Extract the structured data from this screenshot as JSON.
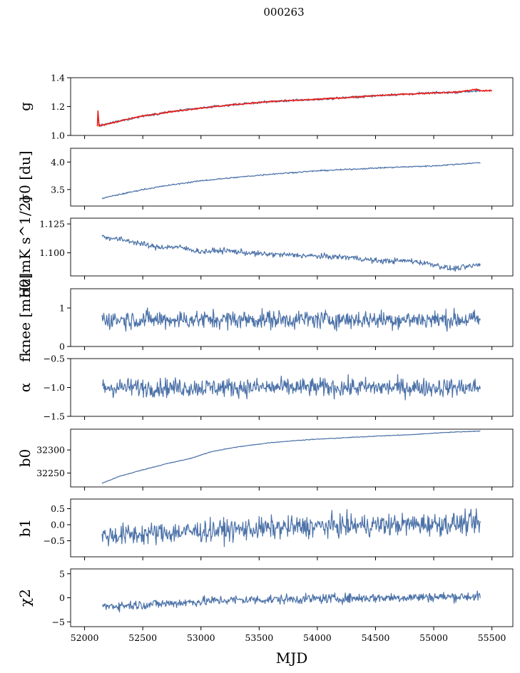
{
  "figure_title": "000263",
  "xlabel": "MJD",
  "x_ticks": [
    52000,
    52500,
    53000,
    53500,
    54000,
    54500,
    55000,
    55500
  ],
  "xlim": [
    51880,
    55680
  ],
  "colors": {
    "series": "#4c72a8",
    "fit": "#e8201a"
  },
  "chart_data": [
    {
      "type": "line",
      "ylabel": "g",
      "ylim": [
        1.0,
        1.4
      ],
      "y_ticks": [
        1.0,
        1.2,
        1.4
      ],
      "y_tick_labels": [
        "1.0",
        "1.2",
        "1.4"
      ],
      "noise": 0.004,
      "series": [
        {
          "color": "#4c72a8",
          "x": [
            52120,
            52140,
            52300,
            52500,
            52700,
            53000,
            53300,
            53600,
            54000,
            54300,
            54600,
            55000,
            55200,
            55400
          ],
          "y": [
            1.07,
            1.07,
            1.1,
            1.135,
            1.16,
            1.19,
            1.215,
            1.235,
            1.25,
            1.265,
            1.28,
            1.295,
            1.3,
            1.31
          ]
        },
        {
          "color": "#e8201a",
          "x": [
            52110,
            52112,
            52125,
            52128,
            52150,
            52300,
            52500,
            52700,
            53000,
            53300,
            53600,
            54000,
            54300,
            54600,
            55000,
            55200,
            55370,
            55390,
            55500
          ],
          "y": [
            1.06,
            1.2,
            1.06,
            1.07,
            1.07,
            1.1,
            1.135,
            1.16,
            1.19,
            1.215,
            1.235,
            1.25,
            1.265,
            1.28,
            1.295,
            1.3,
            1.32,
            1.31,
            1.31
          ]
        }
      ]
    },
    {
      "type": "line",
      "ylabel": "σ0 [du]",
      "ylim": [
        3.2,
        4.25
      ],
      "y_ticks": [
        3.5,
        4.0
      ],
      "y_tick_labels": [
        "3.5",
        "4.0"
      ],
      "noise": 0.006,
      "series": [
        {
          "color": "#4c72a8",
          "x": [
            52150,
            52300,
            52500,
            52700,
            53000,
            53300,
            53600,
            54000,
            54300,
            54600,
            55000,
            55200,
            55400
          ],
          "y": [
            3.34,
            3.41,
            3.5,
            3.57,
            3.66,
            3.72,
            3.78,
            3.84,
            3.87,
            3.9,
            3.93,
            3.96,
            3.99
          ]
        }
      ]
    },
    {
      "type": "line",
      "ylabel": "σ0[mK s^1/2]",
      "ylim": [
        1.08,
        1.13
      ],
      "y_ticks": [
        1.1,
        1.125
      ],
      "y_tick_labels": [
        "1.100",
        "1.125"
      ],
      "noise": 0.0012,
      "series": [
        {
          "color": "#4c72a8",
          "x": [
            52150,
            52400,
            52600,
            52800,
            53000,
            53200,
            53500,
            53800,
            54000,
            54300,
            54500,
            54800,
            55000,
            55150,
            55300,
            55400
          ],
          "y": [
            1.114,
            1.11,
            1.105,
            1.105,
            1.101,
            1.102,
            1.099,
            1.098,
            1.097,
            1.096,
            1.093,
            1.093,
            1.09,
            1.086,
            1.088,
            1.09
          ]
        }
      ]
    },
    {
      "type": "line",
      "ylabel": "fknee [mHz]",
      "ylim": [
        0,
        1.5
      ],
      "y_ticks": [
        0,
        1
      ],
      "y_tick_labels": [
        "0",
        "1"
      ],
      "noise": 0.12,
      "series": [
        {
          "color": "#4c72a8",
          "x": [
            52150,
            55400
          ],
          "y": [
            0.7,
            0.7
          ]
        }
      ]
    },
    {
      "type": "line",
      "ylabel": "α",
      "ylim": [
        -1.5,
        -0.5
      ],
      "y_ticks": [
        -1.5,
        -1.0,
        -0.5
      ],
      "y_tick_labels": [
        "−1.5",
        "−1.0",
        "−0.5"
      ],
      "noise": 0.08,
      "series": [
        {
          "color": "#4c72a8",
          "x": [
            52150,
            55400
          ],
          "y": [
            -1.0,
            -1.0
          ]
        }
      ]
    },
    {
      "type": "line",
      "ylabel": "b0",
      "ylim": [
        32220,
        32345
      ],
      "y_ticks": [
        32250,
        32300
      ],
      "y_tick_labels": [
        "32250",
        "32300"
      ],
      "noise": 0.4,
      "series": [
        {
          "color": "#4c72a8",
          "x": [
            52150,
            52300,
            52500,
            52700,
            52900,
            53100,
            53300,
            53600,
            53900,
            54200,
            54500,
            54800,
            55100,
            55400
          ],
          "y": [
            32228,
            32243,
            32257,
            32270,
            32281,
            32297,
            32306,
            32316,
            32322,
            32326,
            32330,
            32333,
            32338,
            32341
          ]
        }
      ]
    },
    {
      "type": "line",
      "ylabel": "b1",
      "ylim": [
        -1.0,
        0.8
      ],
      "y_ticks": [
        -0.5,
        0.0,
        0.5
      ],
      "y_tick_labels": [
        "−0.5",
        "0.0",
        "0.5"
      ],
      "noise": 0.17,
      "series": [
        {
          "color": "#4c72a8",
          "x": [
            52150,
            53000,
            54000,
            55400
          ],
          "y": [
            -0.35,
            -0.2,
            -0.05,
            0.05
          ]
        }
      ]
    },
    {
      "type": "line",
      "ylabel": "χ2",
      "ylim": [
        -6,
        6
      ],
      "y_ticks": [
        -5,
        0,
        5
      ],
      "y_tick_labels": [
        "−5",
        "0",
        "5"
      ],
      "noise": 0.5,
      "series": [
        {
          "color": "#4c72a8",
          "x": [
            52150,
            52700,
            53200,
            54000,
            54800,
            55400
          ],
          "y": [
            -1.8,
            -1.2,
            -0.5,
            -0.2,
            0.1,
            0.3
          ]
        }
      ]
    }
  ]
}
